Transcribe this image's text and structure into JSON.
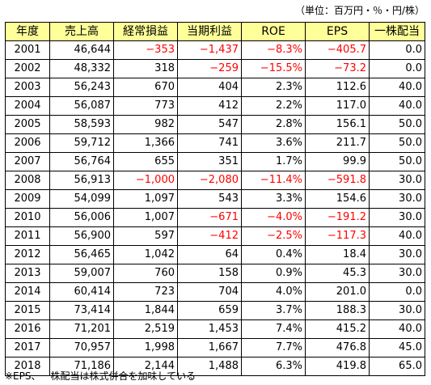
{
  "unit_note": "（単位：百万円・％・円/株）",
  "columns": [
    "年度",
    "売上高",
    "経常損益",
    "当期利益",
    "ROE",
    "EPS",
    "一株配当"
  ],
  "rows": [
    [
      "2001",
      "46,644",
      "−353",
      "−1,437",
      "−8.3%",
      "−405.7",
      "0.0"
    ],
    [
      "2002",
      "48,332",
      "318",
      "−259",
      "−15.5%",
      "−73.2",
      "0.0"
    ],
    [
      "2003",
      "56,243",
      "670",
      "404",
      "2.3%",
      "112.6",
      "40.0"
    ],
    [
      "2004",
      "56,087",
      "773",
      "412",
      "2.2%",
      "117.0",
      "40.0"
    ],
    [
      "2005",
      "58,593",
      "982",
      "547",
      "2.8%",
      "156.1",
      "50.0"
    ],
    [
      "2006",
      "59,712",
      "1,366",
      "741",
      "3.6%",
      "211.7",
      "50.0"
    ],
    [
      "2007",
      "56,764",
      "655",
      "351",
      "1.7%",
      "99.9",
      "50.0"
    ],
    [
      "2008",
      "56,913",
      "−1,000",
      "−2,080",
      "−11.4%",
      "−591.8",
      "30.0"
    ],
    [
      "2009",
      "54,099",
      "1,097",
      "543",
      "3.3%",
      "154.6",
      "30.0"
    ],
    [
      "2010",
      "56,006",
      "1,007",
      "−671",
      "−4.0%",
      "−191.2",
      "30.0"
    ],
    [
      "2011",
      "56,900",
      "597",
      "−412",
      "−2.5%",
      "−117.3",
      "40.0"
    ],
    [
      "2012",
      "56,465",
      "1,042",
      "64",
      "0.4%",
      "18.4",
      "30.0"
    ],
    [
      "2013",
      "59,007",
      "760",
      "158",
      "0.9%",
      "45.3",
      "30.0"
    ],
    [
      "2014",
      "60,414",
      "723",
      "704",
      "4.0%",
      "201.0",
      "0.0"
    ],
    [
      "2015",
      "73,414",
      "1,844",
      "659",
      "3.7%",
      "188.3",
      "30.0"
    ],
    [
      "2016",
      "71,201",
      "2,519",
      "1,453",
      "7.4%",
      "415.2",
      "40.0"
    ],
    [
      "2017",
      "70,957",
      "1,998",
      "1,667",
      "7.7%",
      "476.8",
      "45.0"
    ],
    [
      "2018",
      "71,186",
      "2,144",
      "1,488",
      "6.3%",
      "419.8",
      "65.0"
    ]
  ],
  "footnote": "※EPS、一株配当は株式併合を加味している",
  "colors": {
    "header_bg": "#ffff99",
    "negative": "#ff0000",
    "border": "#000000"
  }
}
